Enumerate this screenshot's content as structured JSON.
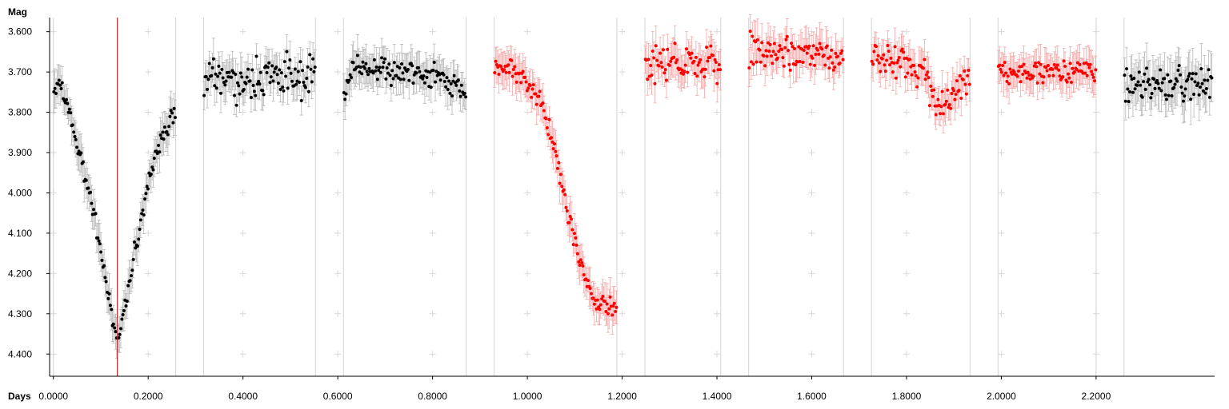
{
  "chart_data": {
    "type": "scatter",
    "ylabel": "Mag",
    "xlabel": "Days",
    "xlim": [
      -0.008,
      2.45
    ],
    "ylim": [
      3.565,
      4.455
    ],
    "y_inverted": true,
    "x_ticks": [
      "0.0000",
      "0.2000",
      "0.4000",
      "0.6000",
      "0.8000",
      "1.0000",
      "1.2000",
      "1.4000",
      "1.6000",
      "1.8000",
      "2.0000",
      "2.2000"
    ],
    "x_tick_values": [
      0,
      0.2,
      0.4,
      0.6,
      0.8,
      1.0,
      1.2,
      1.4,
      1.6,
      1.8,
      2.0,
      2.2
    ],
    "y_ticks": [
      "3.600",
      "3.700",
      "3.800",
      "3.900",
      "4.000",
      "4.100",
      "4.200",
      "4.300",
      "4.400"
    ],
    "y_tick_values": [
      3.6,
      3.7,
      3.8,
      3.9,
      4.0,
      4.1,
      4.2,
      4.3,
      4.4
    ],
    "grid": "light gray crosses at tick intersections",
    "segment_boundaries": [
      0,
      0.258,
      0.317,
      0.553,
      0.612,
      0.871,
      0.93,
      1.189,
      1.248,
      1.408,
      1.467,
      1.667,
      1.726,
      1.934,
      1.993,
      2.2,
      2.259
    ],
    "reference_line": {
      "x": 0.135,
      "color": "#b22222"
    },
    "colors": {
      "black_series": "#000000",
      "black_errorbar": "#b8b8b8",
      "red_series": "#ff0000",
      "red_errorbar": "#f4a8a8",
      "divider": "#d3d3d3"
    },
    "series": [
      {
        "color": "black",
        "x": [
          0.0,
          0.258
        ],
        "shape": "v",
        "anchors": [
          [
            0.0,
            3.75
          ],
          [
            0.01,
            3.72
          ],
          [
            0.025,
            3.76
          ],
          [
            0.05,
            3.88
          ],
          [
            0.08,
            4.02
          ],
          [
            0.1,
            4.15
          ],
          [
            0.12,
            4.28
          ],
          [
            0.135,
            4.36
          ],
          [
            0.15,
            4.3
          ],
          [
            0.17,
            4.15
          ],
          [
            0.2,
            3.98
          ],
          [
            0.23,
            3.86
          ],
          [
            0.258,
            3.8
          ]
        ],
        "error": 0.04
      },
      {
        "color": "black",
        "x": [
          0.317,
          0.553
        ],
        "y_mean": 3.715,
        "y_spread": 0.035,
        "error": 0.04
      },
      {
        "color": "black",
        "x": [
          0.612,
          0.871
        ],
        "anchors": [
          [
            0.612,
            3.75
          ],
          [
            0.63,
            3.69
          ],
          [
            0.7,
            3.695
          ],
          [
            0.8,
            3.71
          ],
          [
            0.85,
            3.73
          ],
          [
            0.871,
            3.76
          ]
        ],
        "y_spread": 0.02,
        "error": 0.04
      },
      {
        "color": "red",
        "x": [
          0.93,
          1.189
        ],
        "shape": "drop",
        "anchors": [
          [
            0.93,
            3.68
          ],
          [
            0.97,
            3.69
          ],
          [
            1.0,
            3.73
          ],
          [
            1.03,
            3.78
          ],
          [
            1.06,
            3.9
          ],
          [
            1.09,
            4.08
          ],
          [
            1.12,
            4.2
          ],
          [
            1.145,
            4.28
          ]
        ],
        "error": 0.04
      },
      {
        "color": "red",
        "x": [
          1.248,
          1.408
        ],
        "y_mean": 3.68,
        "y_spread": 0.035,
        "error": 0.04
      },
      {
        "color": "red",
        "x": [
          1.467,
          1.667
        ],
        "y_mean": 3.65,
        "y_spread": 0.03,
        "error": 0.04
      },
      {
        "color": "red",
        "x": [
          1.726,
          1.934
        ],
        "anchors": [
          [
            1.726,
            3.66
          ],
          [
            1.8,
            3.67
          ],
          [
            1.84,
            3.71
          ],
          [
            1.87,
            3.78
          ],
          [
            1.9,
            3.75
          ],
          [
            1.934,
            3.72
          ]
        ],
        "y_spread": 0.03,
        "error": 0.04
      },
      {
        "color": "red",
        "x": [
          1.993,
          2.2
        ],
        "y_mean": 3.7,
        "y_spread": 0.02,
        "error": 0.04
      },
      {
        "color": "black",
        "x": [
          2.259,
          2.445
        ],
        "y_mean": 3.73,
        "y_spread": 0.03,
        "error": 0.05
      }
    ]
  }
}
